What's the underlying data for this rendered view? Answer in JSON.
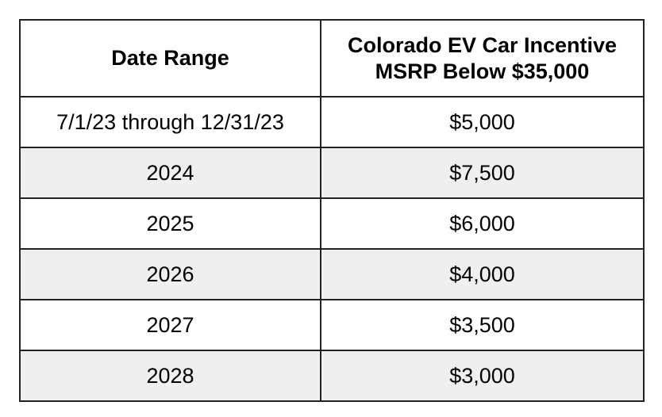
{
  "table": {
    "header": [
      "Date Range",
      [
        "Colorado EV Car Incentive",
        "MSRP Below $35,000"
      ]
    ],
    "rows": [
      [
        "7/1/23 through 12/31/23",
        "$5,000"
      ],
      [
        "2024",
        "$7,500"
      ],
      [
        "2025",
        "$6,000"
      ],
      [
        "2026",
        "$4,000"
      ],
      [
        "2027",
        "$3,500"
      ],
      [
        "2028",
        "$3,000"
      ]
    ]
  }
}
